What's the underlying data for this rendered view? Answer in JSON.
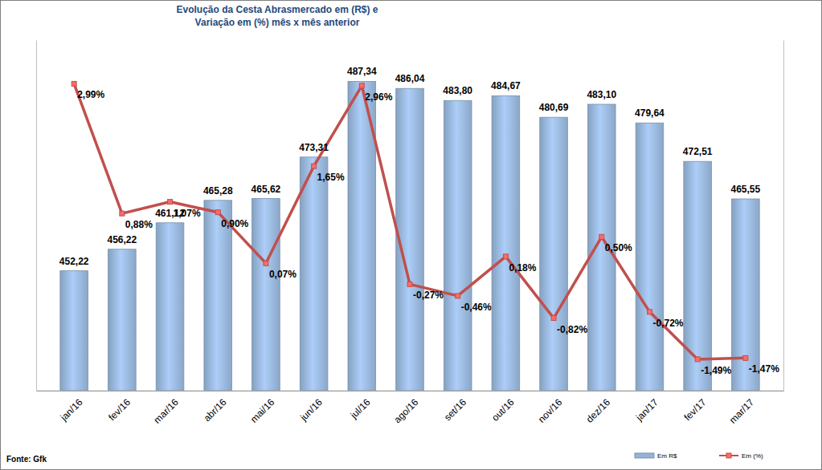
{
  "chart_data": {
    "type": "bar",
    "title": [
      "Evolução da Cesta Abrasmercado em (R$) e",
      "Variação em (%) mês x mês anterior"
    ],
    "source": "Fonte: Gfk",
    "categories": [
      "jan/16",
      "fev/16",
      "mar/16",
      "abr/16",
      "mai/16",
      "jun/16",
      "jul/16",
      "ago/16",
      "set/16",
      "out/16",
      "nov/16",
      "dez/16",
      "jan/17",
      "fev/17",
      "mar/17"
    ],
    "series": [
      {
        "name": "Em R$",
        "type": "bar",
        "axis": "y",
        "color": "#95b3d7",
        "values": [
          452.22,
          456.22,
          461.12,
          465.28,
          465.62,
          473.31,
          487.34,
          486.04,
          483.8,
          484.67,
          480.69,
          483.1,
          479.64,
          472.51,
          465.55
        ],
        "value_labels": [
          "452,22",
          "456,22",
          "461,12",
          "465,28",
          "465,62",
          "473,31",
          "487,34",
          "486,04",
          "483,80",
          "484,67",
          "480,69",
          "483,10",
          "479,64",
          "472,51",
          "465,55"
        ]
      },
      {
        "name": "Em (%)",
        "type": "line",
        "axis": "y2",
        "color": "#c0504d",
        "marker": "square",
        "values": [
          2.99,
          0.88,
          1.07,
          0.9,
          0.07,
          1.65,
          2.96,
          -0.27,
          -0.46,
          0.18,
          -0.82,
          0.5,
          -0.72,
          -1.49,
          -1.47
        ],
        "value_labels": [
          "2,99%",
          "0,88%",
          "1,07%",
          "0,90%",
          "0,07%",
          "1,65%",
          "2,96%",
          "-0,27%",
          "-0,46%",
          "0,18%",
          "-0,82%",
          "0,50%",
          "-0,72%",
          "-1,49%",
          "-1,47%"
        ]
      }
    ],
    "ylim": [
      430,
      495
    ],
    "y2lim": [
      -2,
      3.7
    ],
    "data_labels": true,
    "tick_labels": "x",
    "grid": false,
    "legend": "bottom-right"
  }
}
